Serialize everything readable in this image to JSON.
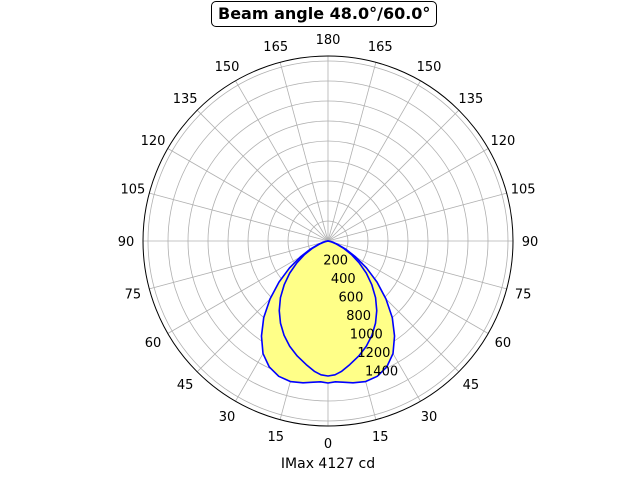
{
  "chart_data": {
    "type": "polar-line",
    "title": "Beam angle 48.0°/60.0°",
    "xlabel": "IMax 4127 cd",
    "theta_zero": "bottom",
    "grid": true,
    "r_ticks": [
      "200",
      "400",
      "600",
      "800",
      "1000",
      "1200",
      "1400"
    ],
    "angle_ticks": [
      {
        "deg": 0,
        "label": "0"
      },
      {
        "deg": 15,
        "label": "15"
      },
      {
        "deg": 30,
        "label": "30"
      },
      {
        "deg": 45,
        "label": "45"
      },
      {
        "deg": 60,
        "label": "60"
      },
      {
        "deg": 75,
        "label": "75"
      },
      {
        "deg": 90,
        "label": "90"
      },
      {
        "deg": 105,
        "label": "105"
      },
      {
        "deg": 120,
        "label": "120"
      },
      {
        "deg": 135,
        "label": "135"
      },
      {
        "deg": 150,
        "label": "150"
      },
      {
        "deg": 165,
        "label": "165"
      },
      {
        "deg": 180,
        "label": "180"
      },
      {
        "deg": 195,
        "label": "165"
      },
      {
        "deg": 210,
        "label": "150"
      },
      {
        "deg": 225,
        "label": "135"
      },
      {
        "deg": 240,
        "label": "120"
      },
      {
        "deg": 255,
        "label": "105"
      },
      {
        "deg": 270,
        "label": "90"
      },
      {
        "deg": 285,
        "label": "75"
      },
      {
        "deg": 300,
        "label": "60"
      },
      {
        "deg": 315,
        "label": "45"
      },
      {
        "deg": 330,
        "label": "30"
      },
      {
        "deg": 345,
        "label": "15"
      }
    ],
    "series": [
      {
        "color": "#0000ff",
        "fill": "#ffff88",
        "angles": [
          0,
          3,
          6,
          10,
          15,
          20,
          25,
          30,
          35,
          40,
          45,
          50,
          55,
          60,
          65,
          70,
          75,
          80,
          85,
          90
        ],
        "values": [
          1420,
          1410,
          1420,
          1440,
          1455,
          1440,
          1390,
          1300,
          1160,
          1000,
          820,
          640,
          470,
          320,
          200,
          110,
          50,
          20,
          5,
          0
        ]
      },
      {
        "color": "#0000ff",
        "fill": "none",
        "angles": [
          0,
          3,
          6,
          10,
          15,
          20,
          25,
          30,
          35,
          40,
          45,
          50,
          55,
          60,
          65,
          70,
          75,
          80,
          85,
          90
        ],
        "values": [
          1350,
          1340,
          1310,
          1255,
          1190,
          1120,
          1040,
          950,
          850,
          740,
          620,
          500,
          380,
          270,
          170,
          90,
          40,
          12,
          3,
          0
        ]
      }
    ]
  }
}
